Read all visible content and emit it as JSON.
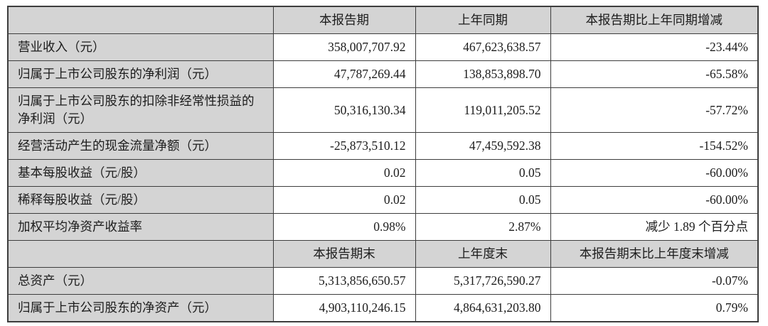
{
  "colors": {
    "header_bg": "#d4d4d4",
    "label_bg": "#d4d4d4",
    "data_bg": "#ffffff",
    "border": "#3d3d3d",
    "text": "#1c1c1c",
    "page_bg": "#ffffff"
  },
  "table": {
    "period_header": {
      "metric": "",
      "current": "本报告期",
      "prior": "上年同期",
      "change": "本报告期比上年同期增减"
    },
    "period_rows": [
      {
        "label": "营业收入（元）",
        "current": "358,007,707.92",
        "prior": "467,623,638.57",
        "change": "-23.44%"
      },
      {
        "label": "归属于上市公司股东的净利润（元）",
        "current": "47,787,269.44",
        "prior": "138,853,898.70",
        "change": "-65.58%"
      },
      {
        "label": "归属于上市公司股东的扣除非经常性损益的净利润（元）",
        "current": "50,316,130.34",
        "prior": "119,011,205.52",
        "change": "-57.72%"
      },
      {
        "label": "经营活动产生的现金流量净额（元）",
        "current": "-25,873,510.12",
        "prior": "47,459,592.38",
        "change": "-154.52%"
      },
      {
        "label": "基本每股收益（元/股）",
        "current": "0.02",
        "prior": "0.05",
        "change": "-60.00%"
      },
      {
        "label": "稀释每股收益（元/股）",
        "current": "0.02",
        "prior": "0.05",
        "change": "-60.00%"
      },
      {
        "label": "加权平均净资产收益率",
        "current": "0.98%",
        "prior": "2.87%",
        "change": "减少 1.89 个百分点"
      }
    ],
    "endpoint_header": {
      "metric": "",
      "current": "本报告期末",
      "prior": "上年度末",
      "change": "本报告期末比上年度末增减"
    },
    "endpoint_rows": [
      {
        "label": "总资产（元）",
        "current": "5,313,856,650.57",
        "prior": "5,317,726,590.27",
        "change": "-0.07%"
      },
      {
        "label": "归属于上市公司股东的净资产（元）",
        "current": "4,903,110,246.15",
        "prior": "4,864,631,203.80",
        "change": "0.79%"
      }
    ]
  }
}
